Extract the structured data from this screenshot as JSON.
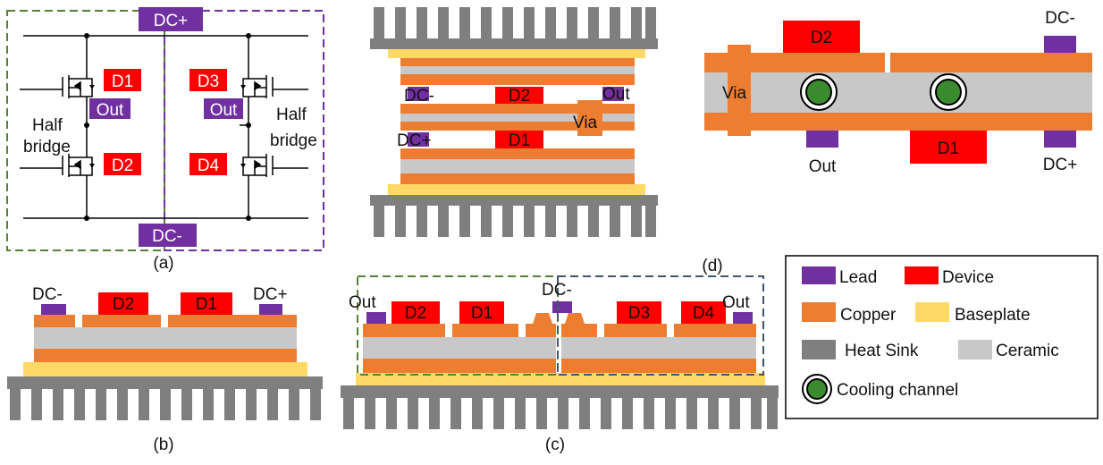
{
  "colors": {
    "lead": "#7030a0",
    "device": "#ff0000",
    "copper": "#ed7d31",
    "baseplate": "#ffd966",
    "heat_sink": "#7f7f7f",
    "ceramic": "#c8c8c8",
    "cooling_inner": "#3a8a2e",
    "green_dash": "#548235",
    "purple_dash": "#7030a0",
    "navy_dash": "#44546a"
  },
  "panel_a": {
    "caption": "(a)",
    "dc_plus": "DC+",
    "dc_minus": "DC-",
    "d1": "D1",
    "d2": "D2",
    "d3": "D3",
    "d4": "D4",
    "out_left": "Out",
    "out_right": "Out",
    "half_left_1": "Half",
    "half_left_2": "bridge",
    "half_right_1": "Half",
    "half_right_2": "bridge"
  },
  "panel_b": {
    "caption": "(b)",
    "dc_minus": "DC-",
    "dc_plus": "DC+",
    "d2": "D2",
    "d1": "D1"
  },
  "panel_c": {
    "caption": "(c)",
    "out_left": "Out",
    "dc_minus": "DC-",
    "out_right": "Out",
    "d2": "D2",
    "d1": "D1",
    "d3": "D3",
    "d4": "D4"
  },
  "panel_d_stack": {
    "dc_minus": "DC-",
    "d2": "D2",
    "out": "Out",
    "via": "Via",
    "dc_plus": "DC+",
    "d1": "D1"
  },
  "panel_d_top": {
    "caption": "(d)",
    "d2": "D2",
    "dc_minus": "DC-",
    "via": "Via",
    "out": "Out",
    "d1": "D1",
    "dc_plus": "DC+"
  },
  "legend": {
    "lead": "Lead",
    "device": "Device",
    "copper": "Copper",
    "baseplate": "Baseplate",
    "heat_sink": "Heat Sink",
    "ceramic": "Ceramic",
    "cooling_channel": "Cooling channel"
  }
}
